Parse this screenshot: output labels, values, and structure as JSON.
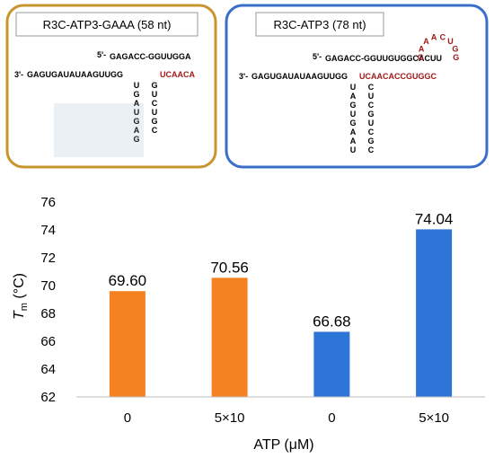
{
  "panels": [
    {
      "title": "R3C-ATP3-GAAA (58 nt)",
      "border_color": "#C8962E",
      "seq_5p_prefix": "5'-",
      "seq_5p_strand": "GAGACC-GGUUGGA",
      "seq_3p_prefix": "3'-",
      "seq_3p_strand": "GAGUGAUAUAAGUUGG",
      "seq_3p_lower": "UCAACA",
      "stem_left": "UGAUGAG",
      "stem_right": "GUCUGC"
    },
    {
      "title": "R3C-ATP3 (78 nt)",
      "border_color": "#3A6FC9",
      "seq_5p_prefix": "5'-",
      "seq_5p_strand": "GAGACC-GGUUGUGGCACUU",
      "seq_3p_prefix": "3'-",
      "seq_3p_strand": "GAGUGAUAUAAGUUGG",
      "seq_3p_lower": "UCAACACCGUGGC",
      "loop": "GAAACUGG",
      "stem_left": "UAGUGAAU",
      "stem_right": "CUCGUCGC"
    }
  ],
  "chart_data": {
    "type": "bar",
    "categories": [
      "0",
      "5×10",
      "0",
      "5×10"
    ],
    "values": [
      69.6,
      70.56,
      66.68,
      74.04
    ],
    "value_labels": [
      "69.60",
      "70.56",
      "66.68",
      "74.04"
    ],
    "bar_colors": [
      "#F58220",
      "#F58220",
      "#2E75D8",
      "#2E75D8"
    ],
    "ylim": [
      62,
      76
    ],
    "yticks": [
      62,
      64,
      66,
      68,
      70,
      72,
      74,
      76
    ],
    "ylabel_main": "T",
    "ylabel_sub": "m",
    "ylabel_unit": " (°C)",
    "xlabel": "ATP (μM)",
    "grid": false
  }
}
